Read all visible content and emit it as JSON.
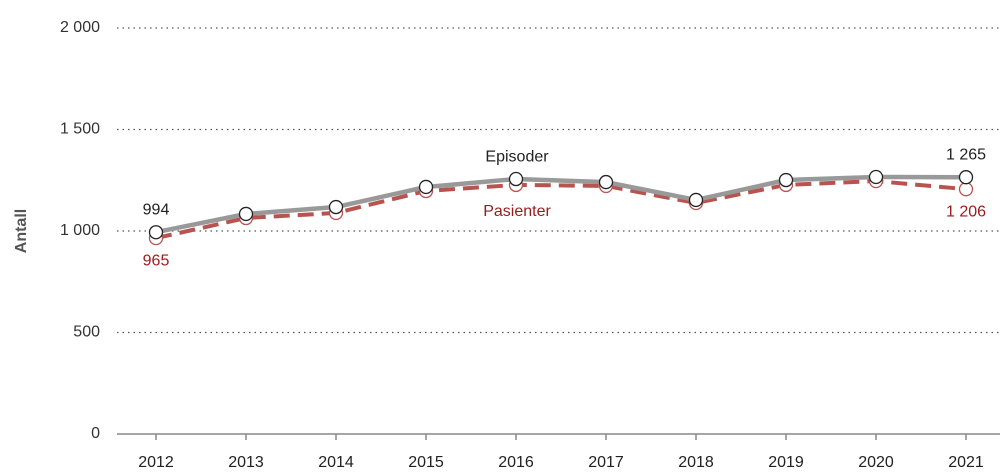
{
  "chart_data": {
    "type": "line",
    "y_label": "Antall",
    "categories": [
      "2012",
      "2013",
      "2014",
      "2015",
      "2016",
      "2017",
      "2018",
      "2019",
      "2020",
      "2021"
    ],
    "series": [
      {
        "name": "Episoder",
        "color": "#999999",
        "dashed": false,
        "values": [
          994,
          1084,
          1118,
          1217,
          1256,
          1241,
          1153,
          1251,
          1266,
          1265
        ],
        "value_labels": [
          "994",
          null,
          null,
          null,
          null,
          null,
          null,
          null,
          null,
          "1 265"
        ]
      },
      {
        "name": "Pasienter",
        "color": "#b85450",
        "dashed": true,
        "values": [
          965,
          1064,
          1089,
          1197,
          1227,
          1222,
          1138,
          1227,
          1246,
          1206
        ],
        "value_labels": [
          "965",
          null,
          null,
          null,
          null,
          null,
          null,
          null,
          null,
          "1 206"
        ]
      }
    ],
    "ylim": [
      0,
      2000
    ],
    "yticks": [
      0,
      500,
      {
        "value": 1000,
        "label": "1 000"
      },
      {
        "value": 1500,
        "label": "1 500"
      },
      {
        "value": 2000,
        "label": "2 000"
      }
    ],
    "grid": true
  }
}
